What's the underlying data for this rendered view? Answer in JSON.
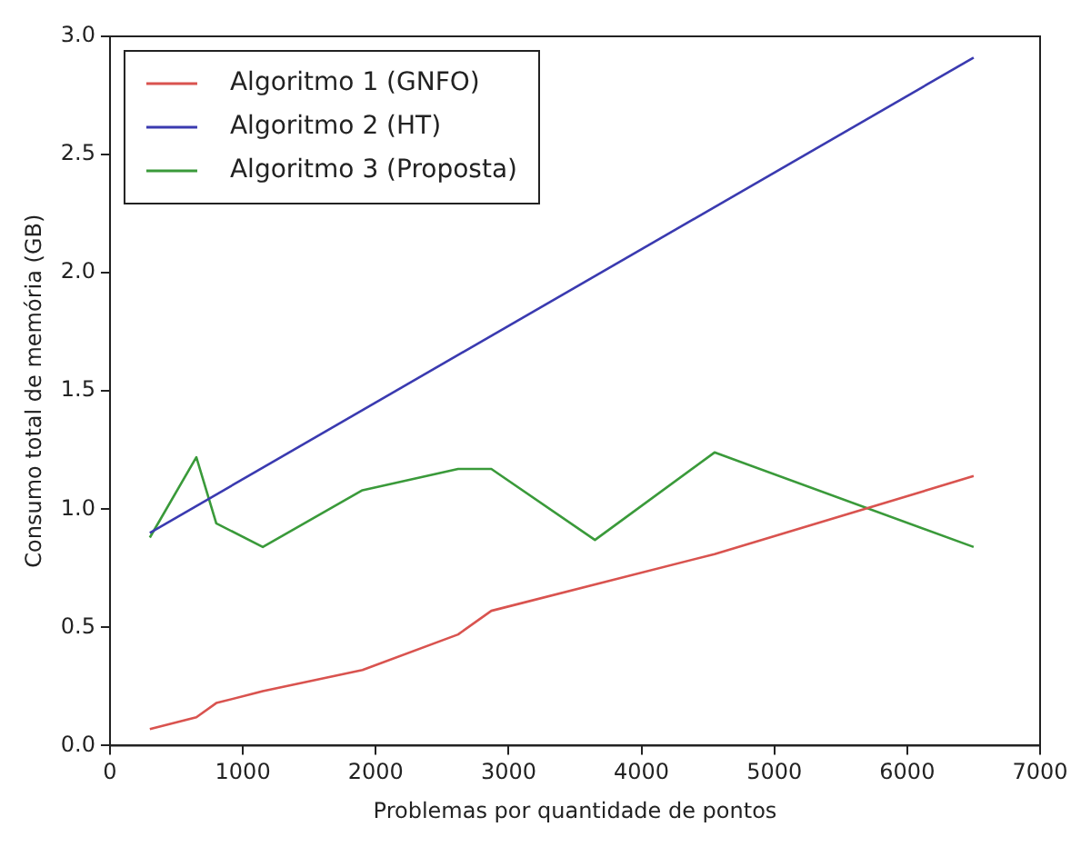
{
  "chart_data": {
    "type": "line",
    "xlabel": "Problemas por quantidade de pontos",
    "ylabel": "Consumo total de memória (GB)",
    "xlim": [
      0,
      7000
    ],
    "xticks": [
      0,
      1000,
      2000,
      3000,
      4000,
      5000,
      6000,
      7000
    ],
    "ylim": [
      0,
      3
    ],
    "yticks": [
      {
        "value": 0,
        "label": "0.0"
      },
      {
        "value": 0.5,
        "label": "0.5"
      },
      {
        "value": 1,
        "label": "1.0"
      },
      {
        "value": 1.5,
        "label": "1.5"
      },
      {
        "value": 2,
        "label": "2.0"
      },
      {
        "value": 2.5,
        "label": "2.5"
      },
      {
        "value": 3,
        "label": "3.0"
      }
    ],
    "grid": false,
    "legend": "top left",
    "marker": "none",
    "line_style": "solid",
    "series": [
      {
        "name": "Algoritmo 1 (GNFO)",
        "color": "#d9534f",
        "x": [
          300,
          650,
          800,
          1150,
          1900,
          2620,
          2870,
          4550,
          6500
        ],
        "values": [
          0.07,
          0.12,
          0.18,
          0.23,
          0.32,
          0.47,
          0.57,
          0.81,
          1.14
        ]
      },
      {
        "name": "Algoritmo 2 (HT)",
        "color": "#3a3ab0",
        "x": [
          300,
          6500
        ],
        "values": [
          0.9,
          2.91
        ]
      },
      {
        "name": "Algoritmo 3 (Proposta)",
        "color": "#3a9a3a",
        "x": [
          300,
          650,
          800,
          1150,
          1900,
          2620,
          2870,
          3650,
          4550,
          6500
        ],
        "values": [
          0.88,
          1.22,
          0.94,
          0.84,
          1.08,
          1.17,
          1.17,
          0.87,
          1.24,
          0.84
        ]
      }
    ]
  }
}
